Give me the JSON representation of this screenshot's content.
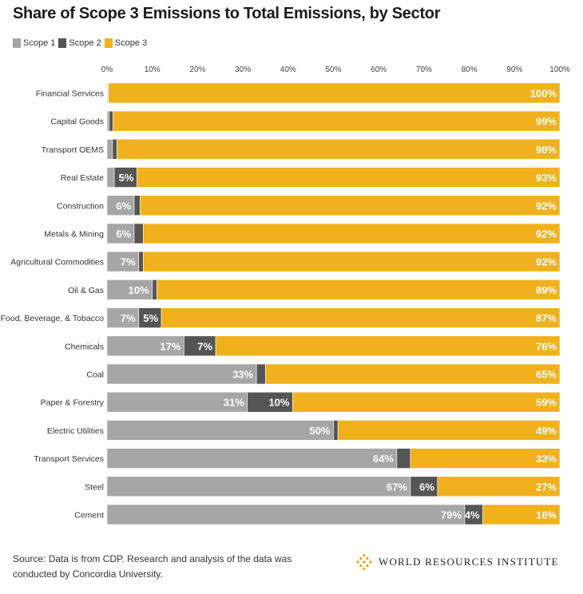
{
  "chart_data": {
    "type": "bar",
    "orientation": "horizontal",
    "stacked": true,
    "title": "Share of Scope 3 Emissions to Total Emissions, by Sector",
    "xlabel": "",
    "ylabel": "",
    "xlim": [
      0,
      100
    ],
    "x_ticks": [
      "0%",
      "10%",
      "20%",
      "30%",
      "40%",
      "50%",
      "60%",
      "70%",
      "80%",
      "90%",
      "100%"
    ],
    "categories": [
      "Financial Services",
      "Capital Goods",
      "Transport OEMS",
      "Real Estate",
      "Construction",
      "Metals & Mining",
      "Agricultural Commodities",
      "Oil & Gas",
      "Food, Beverage, & Tobacco",
      "Chemicals",
      "Coal",
      "Paper & Forestry",
      "Electric Utilities",
      "Transport Services",
      "Steel",
      "Cement"
    ],
    "series": [
      {
        "name": "Scope 1",
        "color": "#a6a6a6",
        "values": [
          0.2,
          0.5,
          1.2,
          1.6,
          6,
          6,
          7,
          10,
          7,
          17,
          33,
          31,
          50,
          64,
          67,
          79
        ],
        "labels": [
          "",
          "",
          "",
          "",
          "6%",
          "6%",
          "7%",
          "10%",
          "7%",
          "17%",
          "33%",
          "31%",
          "50%",
          "64%",
          "67%",
          "79%"
        ]
      },
      {
        "name": "Scope 2",
        "color": "#555555",
        "values": [
          0.1,
          0.8,
          1.0,
          5,
          1.3,
          2,
          1,
          1,
          5,
          7,
          2,
          10,
          1,
          3,
          6,
          4
        ],
        "labels": [
          "",
          "",
          "",
          "5%",
          "",
          "",
          "",
          "",
          "5%",
          "7%",
          "",
          "10%",
          "",
          "",
          "6%",
          "4%"
        ]
      },
      {
        "name": "Scope 3",
        "color": "#f0b11d",
        "values": [
          100,
          99,
          98,
          93,
          92,
          92,
          92,
          89,
          87,
          76,
          65,
          59,
          49,
          33,
          27,
          16
        ],
        "labels": [
          "100%",
          "99%",
          "98%",
          "93%",
          "92%",
          "92%",
          "92%",
          "89%",
          "87%",
          "76%",
          "65%",
          "59%",
          "49%",
          "33%",
          "27%",
          "16%"
        ]
      }
    ],
    "legend": "top-left"
  },
  "footer": {
    "source": "Source: Data is from CDP. Research and analysis of the data was conducted by Concordia University.",
    "org": "World Resources Institute"
  }
}
